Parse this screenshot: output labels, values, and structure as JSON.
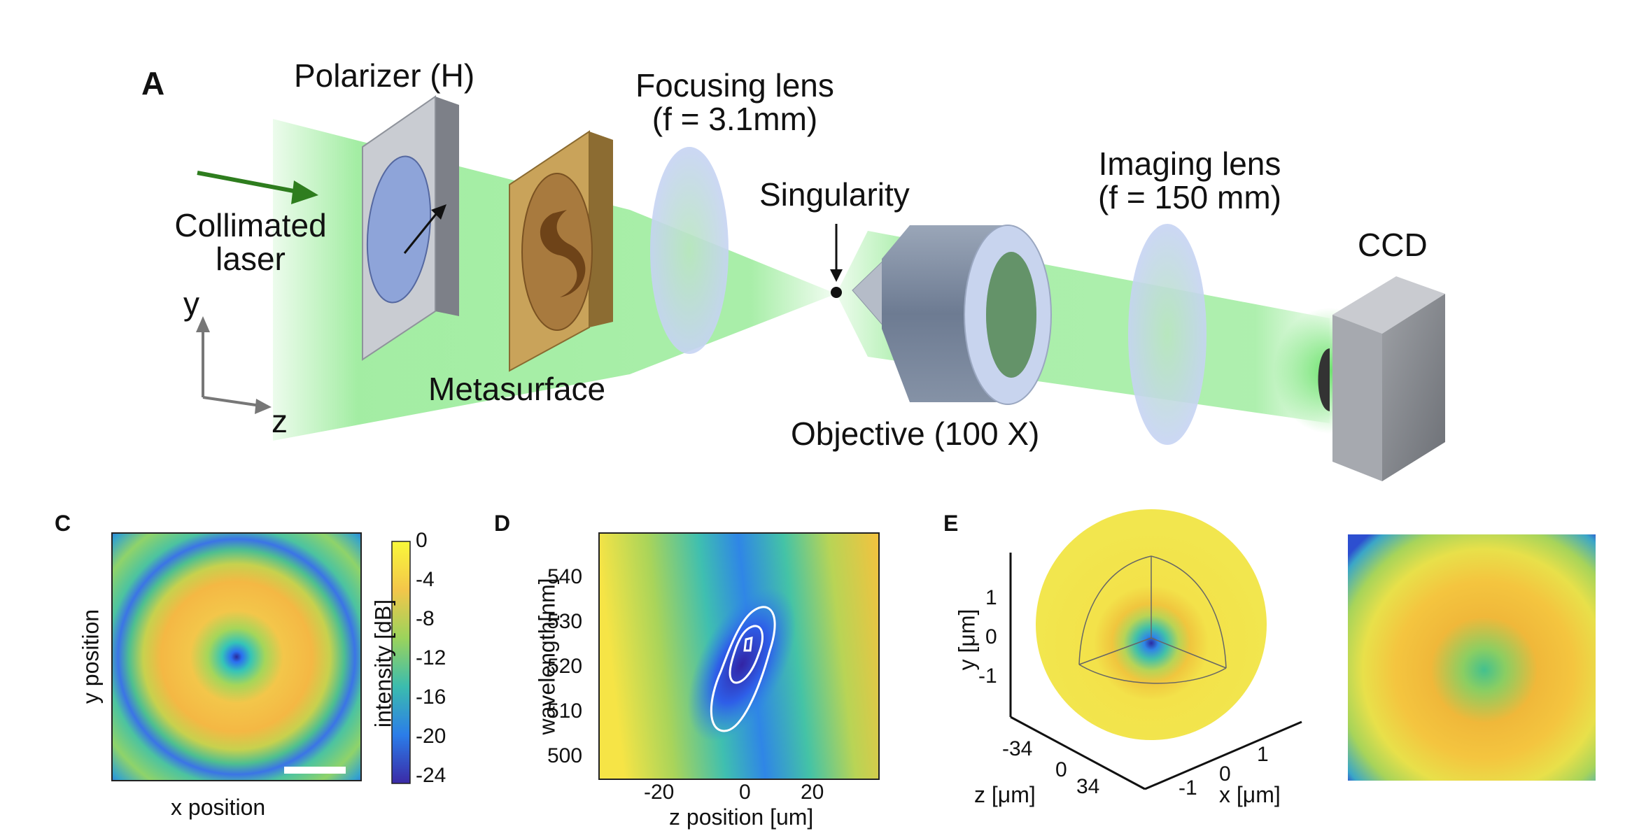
{
  "panel_a": {
    "letter": "A",
    "labels": {
      "polarizer": "Polarizer (H)",
      "focusing_lens_line1": "Focusing lens",
      "focusing_lens_line2": "(f = 3.1mm)",
      "singularity": "Singularity",
      "imaging_lens_line1": "Imaging lens",
      "imaging_lens_line2": "(f = 150 mm)",
      "ccd": "CCD",
      "collimated_line1": "Collimated",
      "collimated_line2": "laser",
      "metasurface": "Metasurface",
      "objective": "Objective (100 X)",
      "axis_y": "y",
      "axis_z": "z"
    },
    "colors": {
      "beam": "#5ee05e",
      "arrow": "#2e7d1e",
      "polarizer": "#c9ccd2",
      "metasurface": "#c9a35a",
      "lens": "#c7d4f2",
      "objective": "#7f8fa8",
      "ccd": "#8e9198"
    }
  },
  "panel_c": {
    "letter": "C",
    "xlabel": "x position",
    "ylabel": "y position",
    "colorbar_label": "intensity [dB]",
    "colorbar_ticks": [
      "0",
      "-4",
      "-8",
      "-12",
      "-16",
      "-20",
      "-24"
    ]
  },
  "panel_d": {
    "letter": "D",
    "xlabel": "z position [um]",
    "ylabel": "wavelength[nm]",
    "xticks": [
      "-20",
      "0",
      "20"
    ],
    "yticks": [
      "540",
      "530",
      "520",
      "510",
      "500"
    ]
  },
  "panel_e": {
    "letter": "E",
    "ylabel": "y [μm]",
    "zlabel": "z [μm]",
    "xlabel": "x [μm]",
    "yticks": [
      "1",
      "0",
      "-1"
    ],
    "zticks": [
      "-34",
      "0",
      "34"
    ],
    "xticks": [
      "1",
      "0",
      "-1"
    ]
  }
}
